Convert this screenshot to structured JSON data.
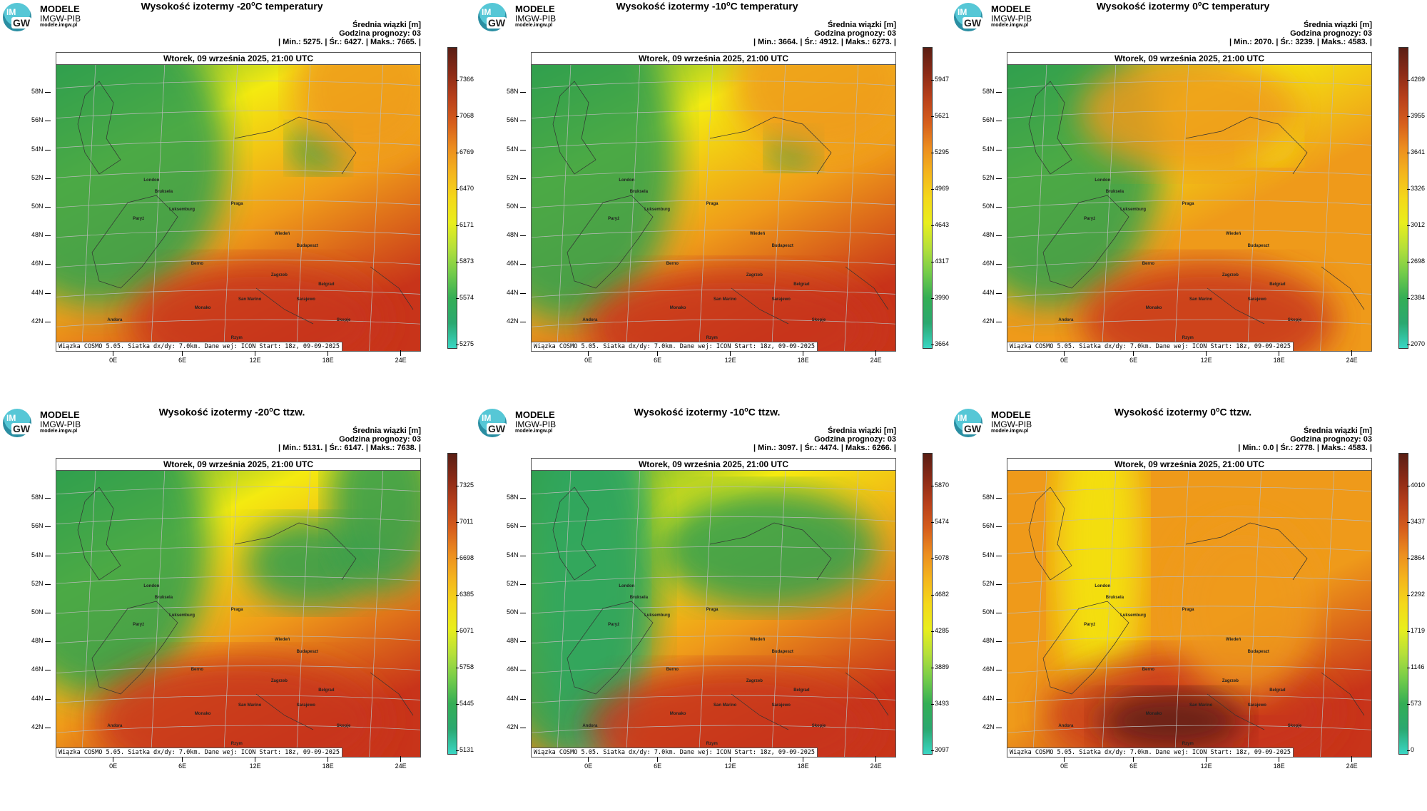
{
  "logo": {
    "circle_top": "IM",
    "circle_bottom": "GW",
    "line1": "MODELE",
    "line2": "IMGW-PIB",
    "line3": "modele.imgw.pl"
  },
  "common": {
    "info_line1": "Średnia wiązki [m]",
    "info_line2": "Godzina prognozy: 03",
    "date_header": "Wtorek, 09 września 2025, 21:00 UTC",
    "footer": "Wiązka COSMO 5.05. Siatka dx/dy: 7.0km. Dane wej: ICON Start: 18z, 09-09-2025"
  },
  "lat_labels": [
    "58N",
    "56N",
    "54N",
    "52N",
    "50N",
    "48N",
    "46N",
    "44N",
    "42N"
  ],
  "lon_labels": [
    "0E",
    "6E",
    "12E",
    "18E",
    "24E"
  ],
  "cities": [
    "London",
    "Bruksela",
    "Luksemburg",
    "Paryż",
    "Praga",
    "Wiedeń",
    "Budapeszt",
    "Berno",
    "Zagrzeb",
    "Belgrad",
    "Monako",
    "San Marino",
    "Sarajewo",
    "Andora",
    "Skopje",
    "Rzym"
  ],
  "colors": {
    "low": "#3ad6c4",
    "green": "#2e9f4f",
    "yellow": "#f4ea10",
    "orange": "#ef9a1a",
    "red": "#c8341a",
    "dark": "#5a1e14"
  },
  "panels": [
    {
      "title_prefix": "Wysokość izotermy -20",
      "title_sup": "o",
      "title_suffix": "C temperatury",
      "stats": "| Min.:    5275. | Śr.:    6427. | Maks.:    7665. |",
      "ticks": [
        "7366",
        "7068",
        "6769",
        "6470",
        "6171",
        "5873",
        "5574",
        "5275"
      ]
    },
    {
      "title_prefix": "Wysokość izotermy -10",
      "title_sup": "o",
      "title_suffix": "C temperatury",
      "stats": "| Min.:    3664. | Śr.:    4912. | Maks.:    6273. |",
      "ticks": [
        "5947",
        "5621",
        "5295",
        "4969",
        "4643",
        "4317",
        "3990",
        "3664"
      ]
    },
    {
      "title_prefix": "Wysokość izotermy 0",
      "title_sup": "o",
      "title_suffix": "C temperatury",
      "stats": "| Min.:    2070. | Śr.:    3239. | Maks.:    4583. |",
      "ticks": [
        "4269",
        "3955",
        "3641",
        "3326",
        "3012",
        "2698",
        "2384",
        "2070"
      ]
    },
    {
      "title_prefix": "Wysokość izotermy -20",
      "title_sup": "o",
      "title_suffix": "C ttzw.",
      "stats": "| Min.:    5131. | Śr.:    6147. | Maks.:    7638. |",
      "ticks": [
        "7325",
        "7011",
        "6698",
        "6385",
        "6071",
        "5758",
        "5445",
        "5131"
      ]
    },
    {
      "title_prefix": "Wysokość izotermy -10",
      "title_sup": "o",
      "title_suffix": "C ttzw.",
      "stats": "| Min.:    3097. | Śr.:    4474. | Maks.:    6266. |",
      "ticks": [
        "5870",
        "5474",
        "5078",
        "4682",
        "4285",
        "3889",
        "3493",
        "3097"
      ]
    },
    {
      "title_prefix": "Wysokość izotermy 0",
      "title_sup": "o",
      "title_suffix": "C ttzw.",
      "stats": "| Min.:      0.0 | Śr.:    2778. | Maks.:    4583. |",
      "ticks": [
        "4010",
        "3437",
        "2864",
        "2292",
        "1719",
        "1146",
        "573",
        "0"
      ]
    }
  ]
}
